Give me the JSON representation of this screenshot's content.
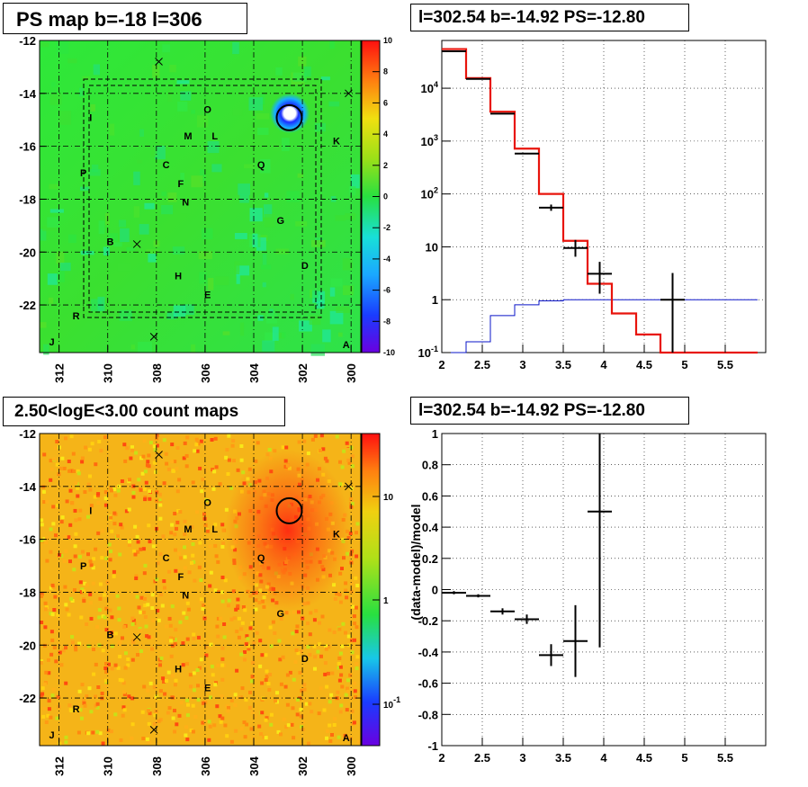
{
  "titles": {
    "map": "PS map b=-18 l=306",
    "spectrum": "l=302.54 b=-14.92 PS=-12.80",
    "count_map": "2.50<logE<3.00 count maps",
    "residual": "l=302.54 b=-14.92 PS=-12.80"
  },
  "colors": {
    "data": "#000000",
    "model": "#e8140c",
    "background_model": "#0a14c8",
    "source_circle": "#000000"
  },
  "maps": {
    "x_ticks": [
      "312",
      "310",
      "308",
      "306",
      "304",
      "302",
      "300"
    ],
    "y_ticks": [
      "-12",
      "-14",
      "-16",
      "-18",
      "-20",
      "-22"
    ],
    "x_range": [
      312.8,
      299.6
    ],
    "y_range": [
      -12,
      -23.8
    ],
    "source": {
      "l": 302.54,
      "b": -14.92
    },
    "letter_labels": [
      {
        "t": "O",
        "l": 305.9,
        "b": -14.6
      },
      {
        "t": "I",
        "l": 310.7,
        "b": -14.9
      },
      {
        "t": "M",
        "l": 306.7,
        "b": -15.6
      },
      {
        "t": "L",
        "l": 305.6,
        "b": -15.6
      },
      {
        "t": "K",
        "l": 300.6,
        "b": -15.8
      },
      {
        "t": "C",
        "l": 307.6,
        "b": -16.7
      },
      {
        "t": "Q",
        "l": 303.7,
        "b": -16.7
      },
      {
        "t": "P",
        "l": 311.0,
        "b": -17.0
      },
      {
        "t": "F",
        "l": 307.0,
        "b": -17.4
      },
      {
        "t": "N",
        "l": 306.8,
        "b": -18.1
      },
      {
        "t": "G",
        "l": 302.9,
        "b": -18.8
      },
      {
        "t": "B",
        "l": 309.9,
        "b": -19.6
      },
      {
        "t": "D",
        "l": 301.9,
        "b": -20.5
      },
      {
        "t": "H",
        "l": 307.1,
        "b": -20.9
      },
      {
        "t": "E",
        "l": 305.9,
        "b": -21.6
      },
      {
        "t": "R",
        "l": 311.3,
        "b": -22.4
      },
      {
        "t": "J",
        "l": 312.3,
        "b": -23.4
      },
      {
        "t": "A",
        "l": 300.2,
        "b": -23.5
      }
    ],
    "cross_marks": [
      {
        "l": 307.9,
        "b": -12.8
      },
      {
        "l": 300.1,
        "b": -14.0
      },
      {
        "l": 308.8,
        "b": -19.7
      },
      {
        "l": 308.1,
        "b": -23.2
      }
    ]
  },
  "ps_colorbar": {
    "ticks": [
      "10",
      "8",
      "6",
      "4",
      "2",
      "0",
      "-2",
      "-4",
      "-6",
      "-8",
      "-10"
    ]
  },
  "count_colorbar": {
    "ticks": [
      "10",
      "1",
      "10-1"
    ]
  },
  "chart_data": [
    {
      "type": "scatter",
      "scale": "log",
      "xlim": [
        2,
        6
      ],
      "ylim": [
        0.1,
        80000
      ],
      "x_tick_labels": [
        "2",
        "2.5",
        "3",
        "3.5",
        "4",
        "4.5",
        "5",
        "5.5"
      ],
      "y_tick_labels": [
        "10-1",
        "1",
        "10",
        "102",
        "103",
        "104"
      ],
      "series": [
        {
          "kind": "data",
          "points": [
            {
              "x": 2.15,
              "y": 50000,
              "xerr": 0.15,
              "ylo": 50000,
              "yhi": 50000
            },
            {
              "x": 2.45,
              "y": 15000,
              "xerr": 0.15,
              "ylo": 15000,
              "yhi": 15000
            },
            {
              "x": 2.75,
              "y": 3300,
              "xerr": 0.15,
              "ylo": 3300,
              "yhi": 3300
            },
            {
              "x": 3.05,
              "y": 580,
              "xerr": 0.15,
              "ylo": 570,
              "yhi": 590
            },
            {
              "x": 3.35,
              "y": 55,
              "xerr": 0.15,
              "ylo": 48,
              "yhi": 63
            },
            {
              "x": 3.65,
              "y": 9.5,
              "xerr": 0.15,
              "ylo": 6.5,
              "yhi": 13.5
            },
            {
              "x": 3.95,
              "y": 3.1,
              "xerr": 0.15,
              "ylo": 1.3,
              "yhi": 5.2
            },
            {
              "x": 4.85,
              "y": 1.0,
              "xerr": 0.15,
              "ylo": 0.1,
              "yhi": 3.2
            }
          ]
        },
        {
          "kind": "model",
          "edges": [
            2.0,
            2.3,
            2.6,
            2.9,
            3.2,
            3.5,
            3.8,
            4.1,
            4.4,
            4.7,
            5.0,
            5.3,
            5.6,
            5.9
          ],
          "values": [
            55000,
            15500,
            3600,
            720,
            100,
            13,
            2.0,
            0.55,
            0.22,
            0.1,
            0.1,
            0.1,
            0.1
          ]
        },
        {
          "kind": "background",
          "edges": [
            2.0,
            2.3,
            2.6,
            2.9,
            3.2,
            3.5,
            3.8,
            4.1,
            4.4,
            4.7,
            5.0,
            5.3,
            5.6,
            5.9
          ],
          "values": [
            0.1,
            0.16,
            0.5,
            0.8,
            0.95,
            1.0,
            1.0,
            1.0,
            1.0,
            1.0,
            1.0,
            1.0,
            1.0
          ]
        }
      ]
    },
    {
      "type": "scatter",
      "ylabel": "(data-model)/model",
      "xlim": [
        2,
        6
      ],
      "ylim": [
        -1,
        1
      ],
      "x_tick_labels": [
        "2",
        "2.5",
        "3",
        "3.5",
        "4",
        "4.5",
        "5",
        "5.5"
      ],
      "y_tick_labels": [
        "-1",
        "-0.8",
        "-0.6",
        "-0.4",
        "-0.2",
        "0",
        "0.2",
        "0.4",
        "0.6",
        "0.8",
        "1"
      ],
      "points": [
        {
          "x": 2.15,
          "y": -0.02,
          "xerr": 0.15,
          "yerr_lo": 0.01,
          "yerr_hi": 0.01
        },
        {
          "x": 2.45,
          "y": -0.04,
          "xerr": 0.15,
          "yerr_lo": 0.01,
          "yerr_hi": 0.01
        },
        {
          "x": 2.75,
          "y": -0.14,
          "xerr": 0.15,
          "yerr_lo": 0.02,
          "yerr_hi": 0.02
        },
        {
          "x": 3.05,
          "y": -0.19,
          "xerr": 0.15,
          "yerr_lo": 0.03,
          "yerr_hi": 0.03
        },
        {
          "x": 3.35,
          "y": -0.42,
          "xerr": 0.15,
          "yerr_lo": 0.07,
          "yerr_hi": 0.07
        },
        {
          "x": 3.65,
          "y": -0.33,
          "xerr": 0.15,
          "yerr_lo": 0.23,
          "yerr_hi": 0.23
        },
        {
          "x": 3.95,
          "y": 0.5,
          "xerr": 0.15,
          "yerr_lo": 0.87,
          "yerr_hi": 0.5
        }
      ]
    }
  ]
}
